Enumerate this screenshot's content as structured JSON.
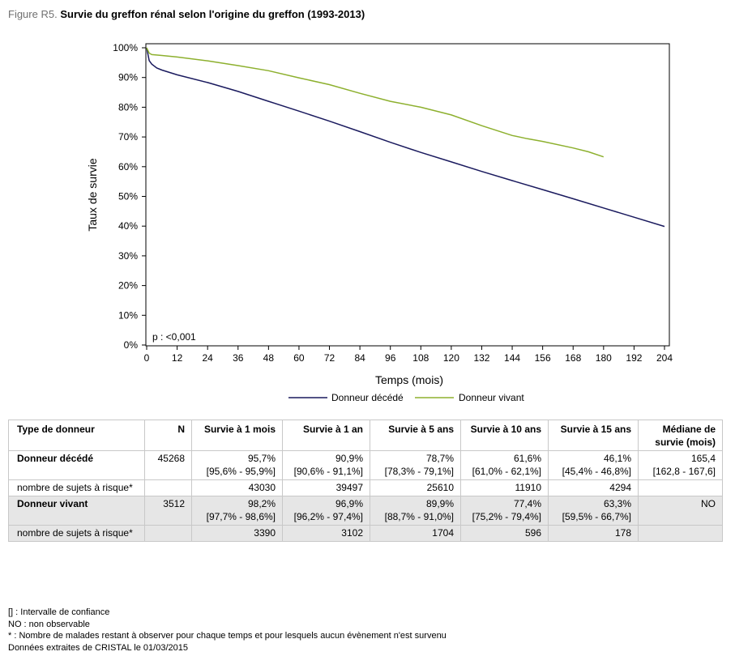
{
  "figure": {
    "label": "Figure R5.",
    "title": "Survie du greffon rénal selon l'origine du greffon (1993-2013)"
  },
  "chart_data": {
    "type": "line",
    "title": "",
    "xlabel": "Temps (mois)",
    "ylabel": "Taux de survie",
    "xlim": [
      0,
      204
    ],
    "ylim": [
      0,
      100
    ],
    "x_ticks": [
      0,
      12,
      24,
      36,
      48,
      60,
      72,
      84,
      96,
      108,
      120,
      132,
      144,
      156,
      168,
      180,
      192,
      204
    ],
    "y_ticks": [
      0,
      10,
      20,
      30,
      40,
      50,
      60,
      70,
      80,
      90,
      100
    ],
    "y_tick_labels": [
      "0%",
      "10%",
      "20%",
      "30%",
      "40%",
      "50%",
      "60%",
      "70%",
      "80%",
      "90%",
      "100%"
    ],
    "annotation": "p : <0,001",
    "grid": false,
    "legend_position": "bottom",
    "series": [
      {
        "name": "Donneur décédé",
        "color": "#1a1a5e",
        "x": [
          0,
          1,
          2,
          4,
          6,
          12,
          24,
          36,
          48,
          60,
          72,
          84,
          96,
          108,
          120,
          132,
          144,
          156,
          168,
          180,
          192,
          204
        ],
        "y": [
          100,
          95.7,
          94.5,
          93.2,
          92.5,
          90.9,
          88.3,
          85.3,
          82.0,
          78.7,
          75.3,
          71.8,
          68.2,
          64.8,
          61.6,
          58.4,
          55.3,
          52.3,
          49.2,
          46.1,
          43.0,
          39.9
        ]
      },
      {
        "name": "Donneur vivant",
        "color": "#8db02e",
        "x": [
          0,
          1,
          2,
          6,
          12,
          24,
          36,
          48,
          60,
          72,
          84,
          96,
          108,
          120,
          132,
          144,
          150,
          156,
          168,
          174,
          180
        ],
        "y": [
          100,
          98.2,
          97.7,
          97.4,
          96.9,
          95.6,
          94.0,
          92.3,
          89.9,
          87.6,
          84.7,
          82.0,
          80.0,
          77.4,
          73.8,
          70.5,
          69.4,
          68.5,
          66.3,
          65.0,
          63.3
        ]
      }
    ]
  },
  "table": {
    "headers": [
      "Type de donneur",
      "N",
      "Survie à 1 mois",
      "Survie à 1 an",
      "Survie à 5 ans",
      "Survie à 10 ans",
      "Survie à 15 ans",
      "Médiane de survie (mois)"
    ],
    "rows": [
      {
        "type": "Donneur décédé",
        "n": "45268",
        "s1m": "95,7%",
        "s1m_ci": "[95,6% - 95,9%]",
        "s1a": "90,9%",
        "s1a_ci": "[90,6% - 91,1%]",
        "s5a": "78,7%",
        "s5a_ci": "[78,3% - 79,1%]",
        "s10a": "61,6%",
        "s10a_ci": "[61,0% - 62,1%]",
        "s15a": "46,1%",
        "s15a_ci": "[45,4% - 46,8%]",
        "med": "165,4",
        "med_ci": "[162,8 - 167,6]"
      },
      {
        "type": "nombre de sujets à risque*",
        "n": "",
        "s1m": "43030",
        "s1a": "39497",
        "s5a": "25610",
        "s10a": "11910",
        "s15a": "4294",
        "med": ""
      },
      {
        "type": "Donneur vivant",
        "n": "3512",
        "s1m": "98,2%",
        "s1m_ci": "[97,7% - 98,6%]",
        "s1a": "96,9%",
        "s1a_ci": "[96,2% - 97,4%]",
        "s5a": "89,9%",
        "s5a_ci": "[88,7% - 91,0%]",
        "s10a": "77,4%",
        "s10a_ci": "[75,2% - 79,4%]",
        "s15a": "63,3%",
        "s15a_ci": "[59,5% - 66,7%]",
        "med": "NO"
      },
      {
        "type": "nombre de sujets à risque*",
        "n": "",
        "s1m": "3390",
        "s1a": "3102",
        "s5a": "1704",
        "s10a": "596",
        "s15a": "178",
        "med": ""
      }
    ]
  },
  "notes": [
    "[] : Intervalle de confiance",
    "NO : non observable",
    "* : Nombre de malades restant à observer pour chaque temps et pour lesquels aucun évènement n'est survenu",
    "Données extraites de CRISTAL le 01/03/2015"
  ]
}
